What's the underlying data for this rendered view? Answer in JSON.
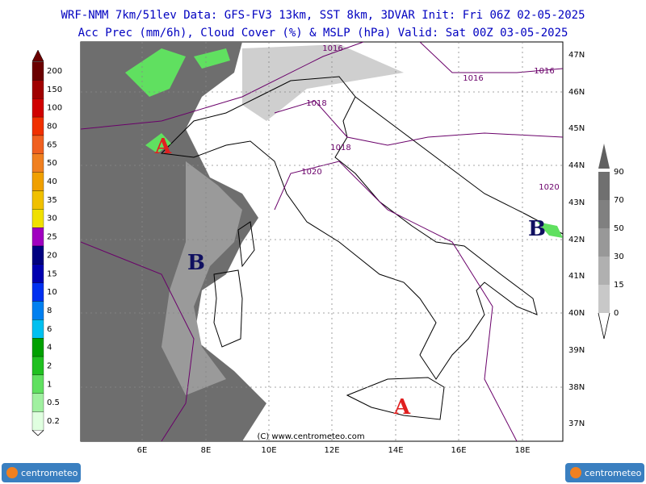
{
  "header": {
    "line1": "WRF-NMM 7km/51lev  Data: GFS-FV3 13km, SST 8km, 3DVAR  Init: Fri 06Z 02-05-2025",
    "line2": "Acc Prec (mm/6h), Cloud Cover (%) & MSLP (hPa)  Valid: Sat 00Z 03-05-2025"
  },
  "precip_scale": {
    "labels": [
      "200",
      "150",
      "100",
      "80",
      "65",
      "50",
      "40",
      "35",
      "30",
      "25",
      "20",
      "15",
      "10",
      "8",
      "6",
      "4",
      "2",
      "1",
      "0.5",
      "0.2"
    ],
    "colors": [
      "#6b0000",
      "#a00000",
      "#d00000",
      "#f03000",
      "#f06020",
      "#f08020",
      "#f0a000",
      "#f0c000",
      "#f0e000",
      "#a000c0",
      "#000080",
      "#0000b0",
      "#0030f0",
      "#0080f0",
      "#00c0f0",
      "#00a000",
      "#20c020",
      "#60e060",
      "#a0f0a0",
      "#e0ffe0"
    ]
  },
  "cloud_scale": {
    "labels": [
      "90",
      "70",
      "50",
      "30",
      "15",
      "0"
    ],
    "colors": [
      "#707070",
      "#808080",
      "#989898",
      "#b0b0b0",
      "#c8c8c8",
      "#e0e0e0"
    ]
  },
  "map": {
    "lat_labels": [
      "47N",
      "46N",
      "45N",
      "44N",
      "43N",
      "42N",
      "41N",
      "40N",
      "39N",
      "38N",
      "37N"
    ],
    "lon_labels": [
      "6E",
      "8E",
      "10E",
      "12E",
      "14E",
      "16E",
      "18E"
    ],
    "isobar_labels": [
      "1016",
      "1016",
      "1016",
      "1018",
      "1018",
      "1020",
      "1020"
    ],
    "centers": [
      "A",
      "B",
      "B",
      "A"
    ],
    "credit": "(C) www.centrometeo.com"
  },
  "logos": [
    "centrometeo",
    "centrometeo"
  ]
}
